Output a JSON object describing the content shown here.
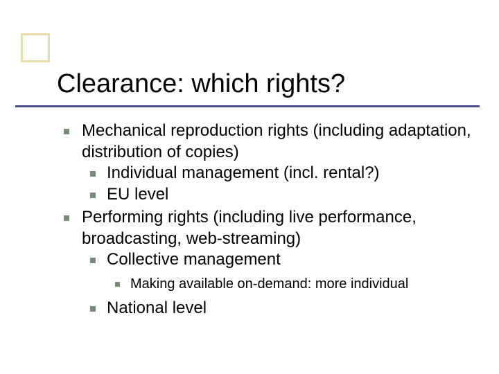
{
  "title": "Clearance: which rights?",
  "colors": {
    "corner_border": "#e8dca8",
    "rule": "#4a4a8a",
    "bullet": "#7a8a7a",
    "text": "#000000",
    "background": "#ffffff"
  },
  "typography": {
    "title_fontsize": 38,
    "body_fontsize": 24,
    "sub_fontsize": 20,
    "title_family": "Arial",
    "body_family": "Verdana"
  },
  "bullets": [
    {
      "text": "Mechanical reproduction rights (including adaptation, distribution of copies)",
      "children": [
        {
          "text": "Individual management (incl. rental?)"
        },
        {
          "text": "EU level"
        }
      ]
    },
    {
      "text": "Performing rights (including live performance, broadcasting, web-streaming)",
      "children": [
        {
          "text": "Collective management",
          "children": [
            {
              "text": "Making available on-demand: more individual"
            }
          ]
        },
        {
          "text": "National level"
        }
      ]
    }
  ]
}
